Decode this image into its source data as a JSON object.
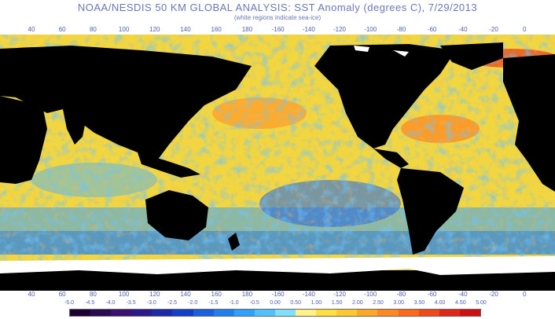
{
  "title": "NOAA/NESDIS 50 KM GLOBAL ANALYSIS: SST Anomaly (degrees C), 7/29/2013",
  "subtitle": "(white regions indicate sea-ice)",
  "longitude_labels_top": [
    "40",
    "60",
    "80",
    "100",
    "120",
    "140",
    "160",
    "180",
    "-160",
    "-140",
    "-120",
    "-100",
    "-80",
    "-60",
    "-40",
    "-20",
    "0"
  ],
  "longitude_labels_bottom": [
    "40",
    "60",
    "80",
    "100",
    "120",
    "140",
    "160",
    "180",
    "-160",
    "-140",
    "-120",
    "-100",
    "-80",
    "-60",
    "-40",
    "-20",
    "0"
  ],
  "colorbar": {
    "labels": [
      "-5.0",
      "-4.5",
      "-4.0",
      "-3.5",
      "-3.0",
      "-2.5",
      "-2.0",
      "-1.5",
      "-1.0",
      "-0.5",
      "0.00",
      "0.50",
      "1.00",
      "1.50",
      "2.00",
      "2.50",
      "3.00",
      "3.50",
      "4.00",
      "4.50",
      "5.00"
    ],
    "colors": [
      "#1a0033",
      "#2a0a55",
      "#3a1070",
      "#2a1a8a",
      "#1a2aa8",
      "#1040c8",
      "#1860e0",
      "#2080f0",
      "#30a0ff",
      "#50c0ff",
      "#80e0ff",
      "#fff08a",
      "#ffe040",
      "#ffc830",
      "#ffa828",
      "#ff8820",
      "#ff6818",
      "#f04818",
      "#e02818",
      "#d01010"
    ]
  },
  "colors": {
    "land": "#000000",
    "sea_ice": "#ffffff",
    "title_text": "#6a78b8",
    "ocean_base": "#f2d640"
  }
}
